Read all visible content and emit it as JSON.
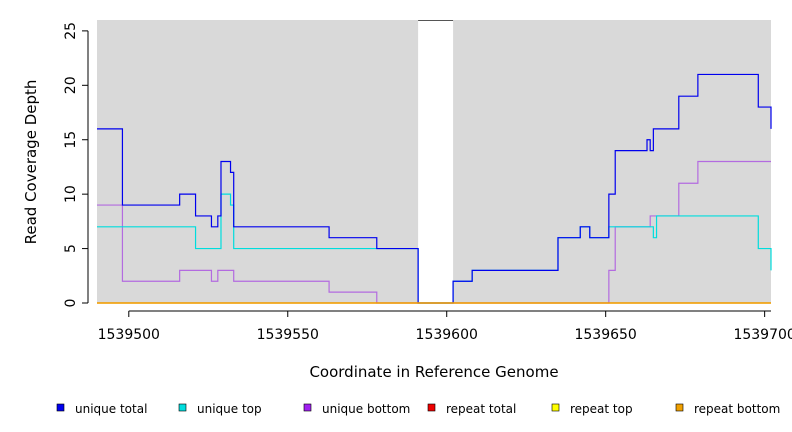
{
  "chart_data": {
    "type": "line",
    "xlabel": "Coordinate in Reference Genome",
    "ylabel": "Read Coverage Depth",
    "xlim": [
      1539490,
      1539702
    ],
    "ylim": [
      0,
      26
    ],
    "x_ticks": [
      1539500,
      1539550,
      1539600,
      1539650,
      1539700
    ],
    "x_tick_labels": [
      "1539500",
      "1539550",
      "1539600",
      "1539650",
      "1539700"
    ],
    "y_ticks": [
      0,
      5,
      10,
      15,
      20,
      25
    ],
    "y_tick_labels": [
      "0",
      "5",
      "10",
      "15",
      "20",
      "25"
    ],
    "shaded_regions": [
      [
        1539490,
        1539591
      ],
      [
        1539602,
        1539702
      ]
    ],
    "shade_color": "#d9d9d9",
    "legend_position": "bottom",
    "series": [
      {
        "name": "unique total",
        "color": "#0000ee",
        "steps": [
          [
            1539490,
            16
          ],
          [
            1539498,
            9
          ],
          [
            1539516,
            10
          ],
          [
            1539521,
            8
          ],
          [
            1539526,
            7
          ],
          [
            1539528,
            8
          ],
          [
            1539529,
            13
          ],
          [
            1539532,
            12
          ],
          [
            1539533,
            7
          ],
          [
            1539563,
            6
          ],
          [
            1539578,
            5
          ],
          [
            1539591,
            0
          ],
          [
            1539602,
            2
          ],
          [
            1539608,
            3
          ],
          [
            1539635,
            6
          ],
          [
            1539642,
            7
          ],
          [
            1539645,
            6
          ],
          [
            1539651,
            10
          ],
          [
            1539653,
            14
          ],
          [
            1539663,
            15
          ],
          [
            1539664,
            14
          ],
          [
            1539665,
            16
          ],
          [
            1539673,
            19
          ],
          [
            1539679,
            21
          ],
          [
            1539698,
            18
          ],
          [
            1539702,
            16
          ]
        ]
      },
      {
        "name": "unique top",
        "color": "#00dddd",
        "steps": [
          [
            1539490,
            7
          ],
          [
            1539521,
            5
          ],
          [
            1539529,
            10
          ],
          [
            1539532,
            9
          ],
          [
            1539533,
            5
          ],
          [
            1539578,
            5
          ],
          [
            1539591,
            0
          ],
          [
            1539602,
            2
          ],
          [
            1539608,
            3
          ],
          [
            1539635,
            6
          ],
          [
            1539642,
            7
          ],
          [
            1539645,
            6
          ],
          [
            1539651,
            7
          ],
          [
            1539665,
            6
          ],
          [
            1539666,
            8
          ],
          [
            1539698,
            5
          ],
          [
            1539702,
            3
          ]
        ]
      },
      {
        "name": "unique bottom",
        "color": "#b36be0",
        "steps": [
          [
            1539490,
            9
          ],
          [
            1539498,
            2
          ],
          [
            1539516,
            3
          ],
          [
            1539526,
            2
          ],
          [
            1539528,
            3
          ],
          [
            1539533,
            2
          ],
          [
            1539563,
            1
          ],
          [
            1539578,
            0
          ],
          [
            1539651,
            3
          ],
          [
            1539653,
            7
          ],
          [
            1539664,
            8
          ],
          [
            1539673,
            11
          ],
          [
            1539679,
            13
          ],
          [
            1539702,
            13
          ]
        ]
      },
      {
        "name": "repeat total",
        "color": "#ee0000",
        "steps": [
          [
            1539490,
            0
          ],
          [
            1539702,
            0
          ]
        ]
      },
      {
        "name": "repeat top",
        "color": "#ffff00",
        "steps": [
          [
            1539490,
            0
          ],
          [
            1539702,
            0
          ]
        ]
      },
      {
        "name": "repeat bottom",
        "color": "#f0a000",
        "steps": [
          [
            1539490,
            0
          ],
          [
            1539702,
            0
          ]
        ]
      }
    ],
    "legend_colors": [
      "#0000ee",
      "#00dddd",
      "#a020f0",
      "#ee0000",
      "#ffff00",
      "#f0a000"
    ]
  }
}
